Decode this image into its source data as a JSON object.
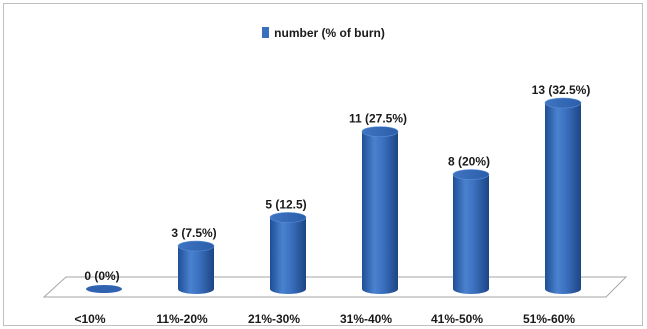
{
  "chart_data": {
    "type": "bar",
    "style": "3d-cylinder",
    "categories": [
      "<10%",
      "11%-20%",
      "21%-30%",
      "31%-40%",
      "41%-50%",
      "51%-60%"
    ],
    "series": [
      {
        "name": "number (% of burn)",
        "values": [
          0,
          3,
          5,
          11,
          8,
          13
        ],
        "color": "#3a6fbd"
      }
    ],
    "data_labels": [
      "0 (0%)",
      "3 (7.5%)",
      "5 (12.5)",
      "11 (27.5%)",
      "8 (20%)",
      "13 (32.5%)"
    ],
    "ylim": [
      0,
      13
    ],
    "grid": false,
    "legend_position": "top-center"
  }
}
